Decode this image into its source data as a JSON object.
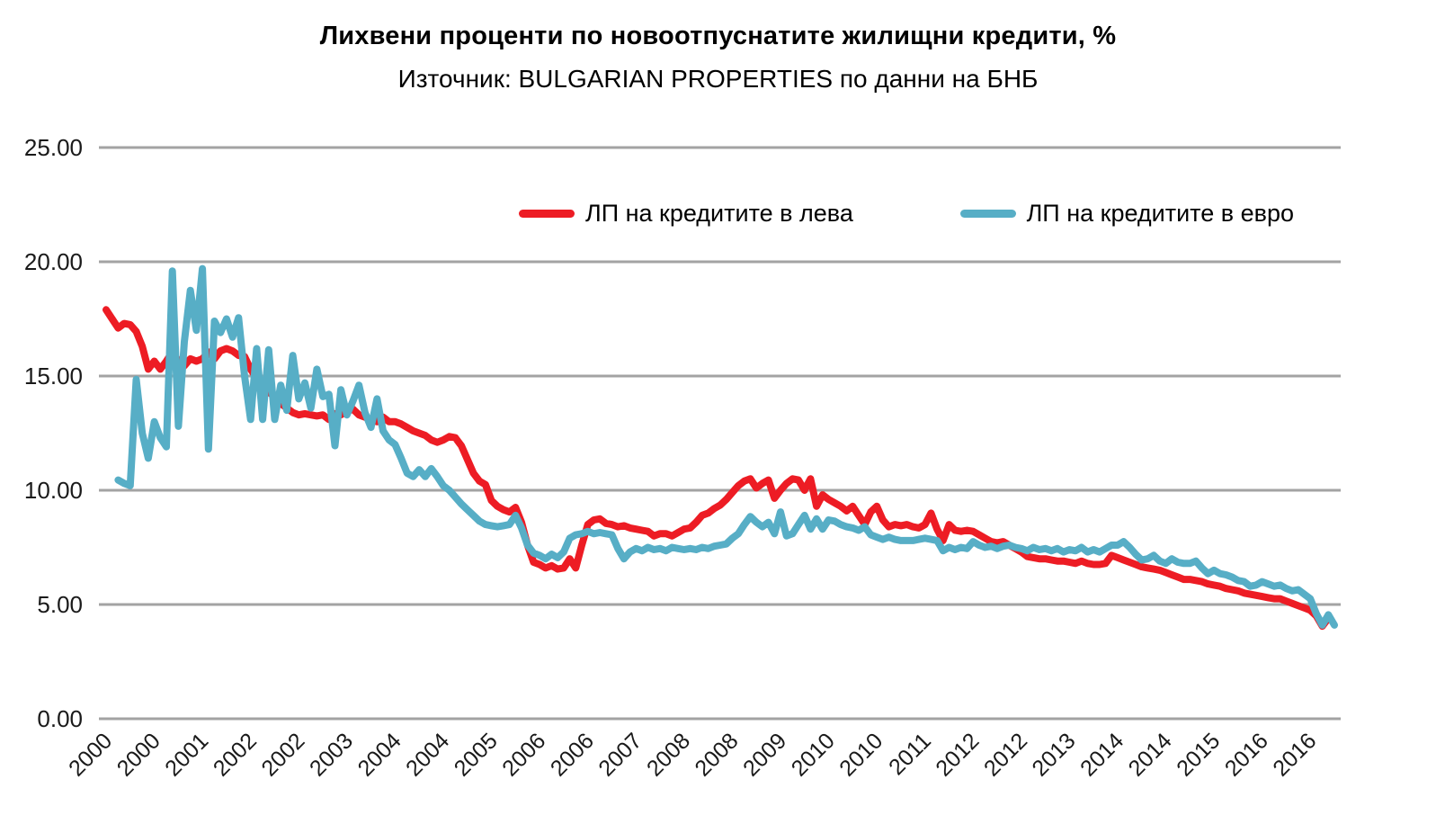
{
  "header": {
    "title": "Лихвени проценти по новоотпуснатите жилищни кредити, %",
    "subtitle": "Източник: BULGARIAN PROPERTIES по данни на БНБ"
  },
  "chart_data": {
    "type": "line",
    "title": "Лихвени проценти по новоотпуснатите жилищни кредити, %",
    "subtitle": "Източник: BULGARIAN PROPERTIES по данни на БНБ",
    "grid": "horizontal",
    "legend_position": "top-center",
    "x_axis": {
      "unit": "month",
      "start": "2000-01",
      "end": "2017-01",
      "tick_interval_months": 8,
      "labels": [
        "2000",
        "2000",
        "2001",
        "2002",
        "2002",
        "2003",
        "2004",
        "2004",
        "2005",
        "2006",
        "2006",
        "2007",
        "2008",
        "2008",
        "2009",
        "2010",
        "2010",
        "2011",
        "2012",
        "2012",
        "2013",
        "2014",
        "2014",
        "2015",
        "2016",
        "2016"
      ]
    },
    "y_axis": {
      "min": 0,
      "max": 25,
      "ticks": [
        0,
        5,
        10,
        15,
        20,
        25
      ],
      "tick_labels": [
        "0.00",
        "5.00",
        "10.00",
        "15.00",
        "20.00",
        "25.00"
      ]
    },
    "colors": {
      "grid": "#a3a3a3",
      "text": "#1a1a1a"
    },
    "series": [
      {
        "name": "ЛП на кредитите в лева",
        "color": "#ed1c24",
        "values": [
          17.9,
          17.5,
          17.1,
          17.3,
          17.25,
          16.95,
          16.3,
          15.3,
          15.65,
          15.3,
          15.65,
          16.05,
          15.65,
          15.45,
          15.75,
          15.65,
          15.75,
          16.05,
          15.75,
          16.1,
          16.2,
          16.1,
          15.9,
          15.85,
          15.3,
          14.9,
          14.7,
          14.3,
          14.1,
          13.8,
          13.6,
          13.4,
          13.3,
          13.35,
          13.3,
          13.25,
          13.3,
          13.1,
          13.35,
          13.3,
          13.45,
          13.55,
          13.3,
          13.2,
          13.1,
          13.0,
          13.2,
          13.0,
          13.0,
          12.9,
          12.75,
          12.6,
          12.5,
          12.4,
          12.2,
          12.1,
          12.2,
          12.35,
          12.3,
          11.95,
          11.35,
          10.75,
          10.4,
          10.25,
          9.55,
          9.3,
          9.15,
          9.05,
          9.25,
          8.6,
          7.6,
          6.85,
          6.75,
          6.6,
          6.7,
          6.55,
          6.6,
          7.0,
          6.6,
          7.6,
          8.5,
          8.7,
          8.75,
          8.55,
          8.5,
          8.4,
          8.45,
          8.35,
          8.3,
          8.25,
          8.2,
          8.0,
          8.1,
          8.1,
          8.0,
          8.15,
          8.3,
          8.35,
          8.6,
          8.9,
          9.0,
          9.2,
          9.35,
          9.6,
          9.9,
          10.2,
          10.4,
          10.5,
          10.1,
          10.3,
          10.45,
          9.65,
          10.0,
          10.3,
          10.5,
          10.45,
          10.0,
          10.5,
          9.3,
          9.8,
          9.6,
          9.45,
          9.3,
          9.1,
          9.3,
          8.9,
          8.5,
          9.05,
          9.3,
          8.7,
          8.4,
          8.5,
          8.45,
          8.5,
          8.4,
          8.35,
          8.5,
          9.0,
          8.3,
          7.8,
          8.5,
          8.25,
          8.2,
          8.25,
          8.2,
          8.05,
          7.9,
          7.75,
          7.7,
          7.75,
          7.6,
          7.45,
          7.3,
          7.1,
          7.05,
          7.0,
          7.0,
          6.95,
          6.9,
          6.9,
          6.85,
          6.8,
          6.9,
          6.8,
          6.75,
          6.75,
          6.8,
          7.15,
          7.05,
          6.95,
          6.85,
          6.75,
          6.65,
          6.6,
          6.55,
          6.5,
          6.4,
          6.3,
          6.2,
          6.1,
          6.1,
          6.05,
          6.0,
          5.9,
          5.85,
          5.8,
          5.7,
          5.65,
          5.6,
          5.5,
          5.45,
          5.4,
          5.35,
          5.3,
          5.25,
          5.25,
          5.15,
          5.05,
          4.95,
          4.85,
          4.75,
          4.5,
          4.05,
          4.4,
          null
        ]
      },
      {
        "name": "ЛП на кредитите в евро",
        "color": "#57aec6",
        "values": [
          null,
          null,
          10.45,
          10.3,
          10.2,
          14.85,
          12.5,
          11.4,
          13.0,
          12.3,
          11.9,
          19.6,
          12.8,
          16.5,
          18.75,
          17.0,
          19.7,
          11.8,
          17.4,
          16.9,
          17.5,
          16.7,
          17.55,
          15.0,
          13.1,
          16.2,
          13.1,
          16.15,
          13.1,
          14.6,
          13.5,
          15.9,
          14.0,
          14.7,
          13.6,
          15.3,
          14.1,
          14.2,
          11.95,
          14.4,
          13.3,
          13.9,
          14.6,
          13.4,
          12.75,
          14.0,
          12.6,
          12.2,
          12.0,
          11.4,
          10.75,
          10.6,
          10.9,
          10.6,
          10.95,
          10.6,
          10.2,
          10.0,
          9.7,
          9.4,
          9.15,
          8.9,
          8.65,
          8.5,
          8.45,
          8.4,
          8.45,
          8.5,
          8.9,
          8.35,
          7.6,
          7.25,
          7.15,
          7.0,
          7.2,
          7.05,
          7.3,
          7.9,
          8.05,
          8.1,
          8.2,
          8.1,
          8.15,
          8.1,
          8.05,
          7.45,
          7.0,
          7.3,
          7.45,
          7.35,
          7.5,
          7.4,
          7.45,
          7.35,
          7.5,
          7.45,
          7.4,
          7.45,
          7.4,
          7.5,
          7.45,
          7.55,
          7.6,
          7.65,
          7.9,
          8.1,
          8.5,
          8.85,
          8.6,
          8.4,
          8.6,
          8.1,
          9.05,
          8.0,
          8.1,
          8.5,
          8.9,
          8.3,
          8.75,
          8.3,
          8.7,
          8.65,
          8.5,
          8.4,
          8.35,
          8.25,
          8.4,
          8.05,
          7.95,
          7.85,
          7.95,
          7.85,
          7.8,
          7.8,
          7.8,
          7.85,
          7.9,
          7.85,
          7.8,
          7.35,
          7.5,
          7.4,
          7.5,
          7.45,
          7.75,
          7.6,
          7.5,
          7.55,
          7.45,
          7.55,
          7.6,
          7.5,
          7.45,
          7.35,
          7.5,
          7.4,
          7.45,
          7.35,
          7.45,
          7.3,
          7.4,
          7.35,
          7.5,
          7.3,
          7.4,
          7.3,
          7.45,
          7.6,
          7.6,
          7.75,
          7.5,
          7.2,
          6.95,
          7.0,
          7.15,
          6.9,
          6.8,
          7.0,
          6.85,
          6.8,
          6.8,
          6.9,
          6.6,
          6.35,
          6.5,
          6.35,
          6.3,
          6.2,
          6.05,
          6.0,
          5.8,
          5.85,
          6.0,
          5.9,
          5.8,
          5.85,
          5.7,
          5.6,
          5.65,
          5.45,
          5.25,
          4.6,
          4.1,
          4.55,
          4.1
        ]
      }
    ]
  }
}
